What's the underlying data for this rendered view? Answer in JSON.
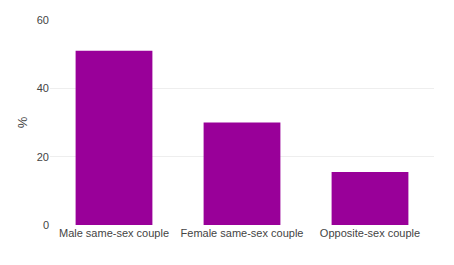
{
  "chart_data": {
    "type": "bar",
    "categories": [
      "Male same-sex couple",
      "Female same-sex couple",
      "Opposite-sex couple"
    ],
    "values": [
      51.0,
      30.0,
      15.5
    ],
    "color": "#990099",
    "ylabel": "%",
    "ylim": [
      0,
      60
    ],
    "yticks": [
      0,
      20,
      40,
      60
    ],
    "grid": true
  }
}
